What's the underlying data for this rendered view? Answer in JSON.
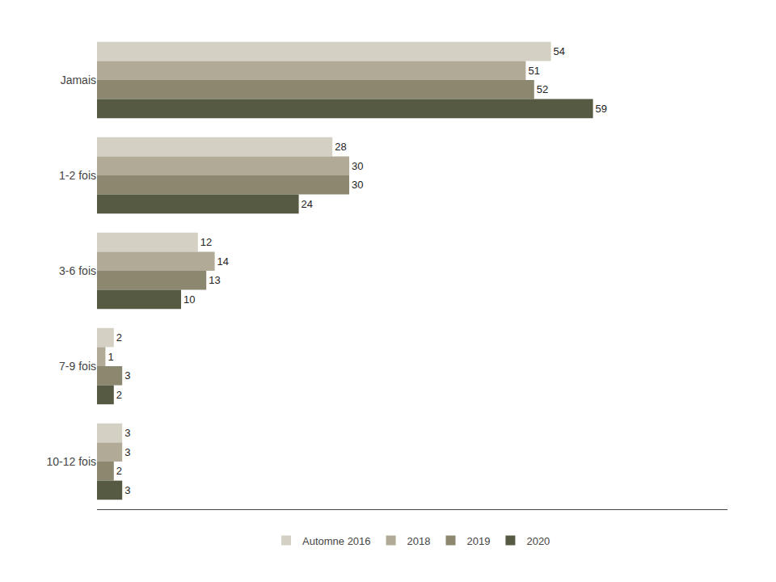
{
  "chart_data": {
    "type": "bar",
    "orientation": "horizontal",
    "categories": [
      "Jamais",
      "1-2 fois",
      "3-6 fois",
      "7-9 fois",
      "10-12 fois"
    ],
    "series": [
      {
        "name": "Automne 2016",
        "color": "#d4d0c4",
        "values": [
          54,
          28,
          12,
          2,
          3
        ]
      },
      {
        "name": "2018",
        "color": "#b0aa96",
        "values": [
          51,
          30,
          14,
          1,
          3
        ]
      },
      {
        "name": "2019",
        "color": "#8c8870",
        "values": [
          52,
          30,
          13,
          3,
          2
        ]
      },
      {
        "name": "2020",
        "color": "#575a42",
        "values": [
          59,
          24,
          10,
          2,
          3
        ]
      }
    ],
    "xlim": [
      0,
      75
    ],
    "grid": false,
    "data_labels": true,
    "tick_labels": "y",
    "legend": "bottom"
  }
}
